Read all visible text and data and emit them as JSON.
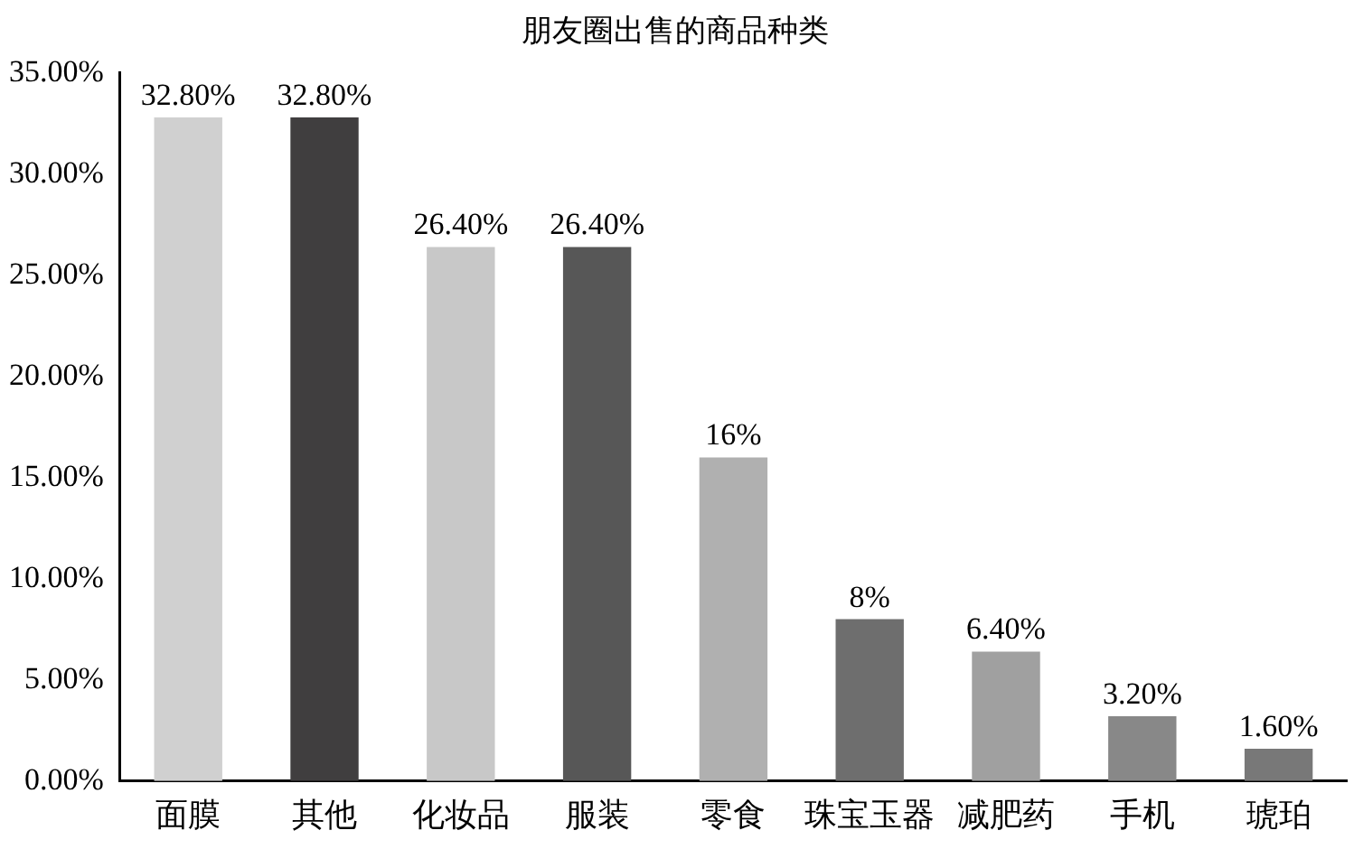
{
  "chart_data": {
    "type": "bar",
    "title": "朋友圈出售的商品种类",
    "categories": [
      "面膜",
      "其他",
      "化妆品",
      "服装",
      "零食",
      "珠宝玉器",
      "减肥药",
      "手机",
      "琥珀"
    ],
    "values": [
      32.8,
      32.8,
      26.4,
      26.4,
      16,
      8,
      6.4,
      3.2,
      1.6
    ],
    "colors": [
      "#d0d0d0",
      "#403e3f",
      "#c8c8c8",
      "#575757",
      "#b0b0b0",
      "#6e6e6e",
      "#a0a0a0",
      "#888888",
      "#787878"
    ],
    "value_labels": [
      "32.80%",
      "32.80%",
      "26.40%",
      "26.40%",
      "16%",
      "8%",
      "6.40%",
      "3.20%",
      "1.60%"
    ],
    "ylim": [
      0,
      35
    ],
    "yticks": [
      {
        "value": 0,
        "label": "0.00%"
      },
      {
        "value": 5,
        "label": "5.00%"
      },
      {
        "value": 10,
        "label": "10.00%"
      },
      {
        "value": 15,
        "label": "15.00%"
      },
      {
        "value": 20,
        "label": "20.00%"
      },
      {
        "value": 25,
        "label": "25.00%"
      },
      {
        "value": 30,
        "label": "30.00%"
      },
      {
        "value": 35,
        "label": "35.00%"
      }
    ],
    "grid": false,
    "legend": false
  }
}
